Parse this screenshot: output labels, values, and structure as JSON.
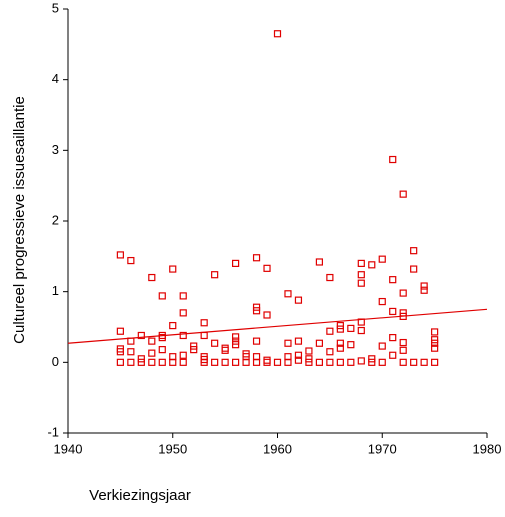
{
  "chart_data": {
    "type": "scatter",
    "x_label": "Verkiezingsjaar",
    "y_label": "Cultureel progressieve issuesaillantie",
    "xlim": [
      1940,
      1980
    ],
    "xticks": [
      1940,
      1950,
      1960,
      1970,
      1980
    ],
    "ylim": [
      -1,
      5
    ],
    "yticks": [
      -1,
      0,
      1,
      2,
      3,
      4,
      5
    ],
    "grid": false,
    "series": [
      {
        "color": "#e00000",
        "x": [
          1945,
          1945,
          1945,
          1945,
          1945,
          1946,
          1946,
          1946,
          1946,
          1947,
          1947,
          1947,
          1948,
          1948,
          1948,
          1948,
          1949,
          1949,
          1949,
          1949,
          1949,
          1950,
          1950,
          1950,
          1950,
          1951,
          1951,
          1951,
          1951,
          1951,
          1952,
          1952,
          1953,
          1953,
          1953,
          1953,
          1953,
          1954,
          1954,
          1954,
          1955,
          1955,
          1955,
          1956,
          1956,
          1956,
          1956,
          1956,
          1957,
          1957,
          1957,
          1958,
          1958,
          1958,
          1958,
          1958,
          1958,
          1959,
          1959,
          1959,
          1959,
          1960,
          1960,
          1961,
          1961,
          1961,
          1961,
          1962,
          1962,
          1962,
          1962,
          1963,
          1963,
          1963,
          1964,
          1964,
          1964,
          1965,
          1965,
          1965,
          1965,
          1966,
          1966,
          1966,
          1966,
          1966,
          1967,
          1967,
          1967,
          1968,
          1968,
          1968,
          1968,
          1968,
          1968,
          1969,
          1969,
          1969,
          1970,
          1970,
          1970,
          1970,
          1971,
          1971,
          1971,
          1971,
          1971,
          1972,
          1972,
          1972,
          1972,
          1972,
          1972,
          1972,
          1973,
          1973,
          1973,
          1974,
          1974,
          1974,
          1975,
          1975,
          1975,
          1975,
          1975
        ],
        "values": [
          1.52,
          0.44,
          0.19,
          0.15,
          0,
          1.44,
          0.3,
          0.15,
          0,
          0.38,
          0.05,
          0,
          1.2,
          0.3,
          0.13,
          0,
          0.94,
          0.38,
          0.35,
          0.18,
          0,
          1.32,
          0.52,
          0.08,
          0,
          0.94,
          0.7,
          0.38,
          0.1,
          0,
          0.23,
          0.18,
          0.56,
          0.38,
          0.08,
          0.04,
          0,
          1.24,
          0.27,
          0,
          0.2,
          0.17,
          0,
          1.4,
          0.36,
          0.3,
          0.25,
          0,
          0.12,
          0.08,
          0,
          1.48,
          0.78,
          0.73,
          0.3,
          0.08,
          0,
          1.33,
          0.67,
          0.03,
          0,
          4.65,
          0,
          0.97,
          0.27,
          0.08,
          0,
          0.88,
          0.3,
          0.1,
          0.03,
          0.16,
          0.05,
          0,
          1.42,
          0.27,
          0,
          1.2,
          0.44,
          0.15,
          0,
          0.52,
          0.47,
          0.27,
          0.2,
          0,
          0.48,
          0.25,
          0,
          1.4,
          1.24,
          1.12,
          0.57,
          0.45,
          0.02,
          1.38,
          0.05,
          0,
          1.46,
          0.86,
          0.23,
          0,
          2.87,
          1.17,
          0.72,
          0.35,
          0.1,
          2.38,
          0.98,
          0.7,
          0.65,
          0.28,
          0.17,
          0,
          1.58,
          1.32,
          0,
          1.08,
          1.02,
          0,
          0.43,
          0.32,
          0.27,
          0.2,
          0
        ]
      },
      {
        "color": "#e00000",
        "line": true,
        "x": [
          1940,
          1980
        ],
        "values": [
          0.27,
          0.75
        ]
      }
    ]
  }
}
